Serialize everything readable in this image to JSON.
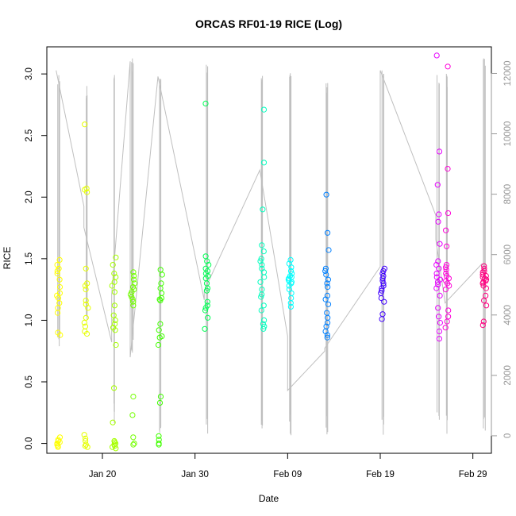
{
  "chart_data": {
    "type": "scatter",
    "title": "ORCAS RF01-19 RICE (Log)",
    "xlabel": "Date",
    "ylabel": "RICE",
    "grid": false,
    "legend": "none",
    "x_axis": {
      "type": "date",
      "range": [
        "2016-01-14",
        "2016-03-02"
      ],
      "ticks": [
        "2016-01-20",
        "2016-01-30",
        "2016-02-09",
        "2016-02-19",
        "2016-02-29"
      ],
      "tick_labels": [
        "Jan 20",
        "Jan 30",
        "Feb 09",
        "Feb 19",
        "Feb 29"
      ]
    },
    "y_axis": {
      "range": [
        -0.08,
        3.22
      ],
      "ticks": [
        0.0,
        0.5,
        1.0,
        1.5,
        2.0,
        2.5,
        3.0
      ],
      "tick_labels": [
        "0.0",
        "0.5",
        "1.0",
        "1.5",
        "2.0",
        "2.5",
        "3.0"
      ]
    },
    "y2_axis": {
      "color": "#999999",
      "range": [
        -580,
        12880
      ],
      "ticks": [
        0,
        2000,
        4000,
        6000,
        8000,
        10000,
        12000
      ],
      "tick_labels": [
        "0",
        "2000",
        "4000",
        "6000",
        "8000",
        "10000",
        "12000"
      ]
    },
    "altitude_line_color": "#bfbfbf",
    "flights": [
      {
        "date": "2016-01-15",
        "color": "#ffff00",
        "alt_min": 2700,
        "alt_max": 12100,
        "y": [
          1.49,
          1.45,
          1.42,
          1.4,
          1.38,
          1.33,
          1.27,
          1.22,
          1.2,
          1.18,
          1.14,
          1.1,
          1.06,
          0.9,
          0.88,
          0.05,
          0.03,
          0.02,
          0.01,
          0.0,
          -0.01,
          -0.02,
          -0.03
        ]
      },
      {
        "date": "2016-01-18",
        "color": "#e6ff00",
        "alt_min": 3600,
        "alt_max": 11700,
        "y": [
          2.59,
          2.07,
          2.06,
          2.04,
          1.42,
          1.3,
          1.28,
          1.25,
          1.16,
          1.13,
          1.1,
          1.02,
          0.98,
          0.95,
          0.91,
          0.89,
          0.07,
          0.04,
          0.02,
          -0.01,
          -0.02,
          -0.03
        ]
      },
      {
        "date": "2016-01-21",
        "color": "#a6ff00",
        "alt_min": 400,
        "alt_max": 12100,
        "y": [
          1.51,
          1.45,
          1.38,
          1.35,
          1.31,
          1.28,
          1.23,
          1.12,
          1.04,
          1.0,
          0.97,
          0.94,
          0.92,
          0.8,
          0.45,
          0.17,
          0.02,
          0.01,
          0.0,
          -0.01,
          -0.02,
          -0.03,
          -0.04
        ]
      },
      {
        "date": "2016-01-23",
        "color": "#73ff00",
        "alt_min": 2500,
        "alt_max": 12500,
        "y": [
          1.39,
          1.36,
          1.33,
          1.3,
          1.27,
          1.25,
          1.23,
          1.21,
          1.19,
          1.17,
          1.15,
          1.12,
          0.38,
          0.23,
          0.05,
          0.0,
          -0.01
        ]
      },
      {
        "date": "2016-01-26",
        "color": "#40ff00",
        "alt_min": 0,
        "alt_max": 12000,
        "y": [
          1.41,
          1.37,
          1.3,
          1.26,
          1.22,
          1.18,
          1.17,
          1.16,
          0.97,
          0.92,
          0.87,
          0.86,
          0.8,
          0.38,
          0.33,
          0.06,
          0.03,
          0.0,
          -0.01
        ]
      },
      {
        "date": "2016-01-31",
        "color": "#00ff55",
        "alt_min": 0,
        "alt_max": 12400,
        "y": [
          2.76,
          1.52,
          1.48,
          1.45,
          1.42,
          1.4,
          1.38,
          1.36,
          1.34,
          1.3,
          1.26,
          1.24,
          1.15,
          1.12,
          1.1,
          1.08,
          1.02,
          0.93
        ]
      },
      {
        "date": "2016-02-06",
        "color": "#00ffbf",
        "alt_min": 0,
        "alt_max": 12100,
        "y": [
          2.71,
          2.28,
          1.9,
          1.61,
          1.56,
          1.5,
          1.48,
          1.45,
          1.42,
          1.39,
          1.35,
          1.31,
          1.25,
          1.21,
          1.19,
          1.12,
          1.08,
          1.0,
          0.97,
          0.95,
          0.93
        ]
      },
      {
        "date": "2016-02-09",
        "color": "#00ffff",
        "alt_min": 0,
        "alt_max": 12300,
        "y": [
          1.49,
          1.46,
          1.43,
          1.4,
          1.38,
          1.36,
          1.35,
          1.34,
          1.33,
          1.32,
          1.31,
          1.3,
          1.28,
          1.25,
          1.22,
          1.18,
          1.14,
          1.11
        ]
      },
      {
        "date": "2016-02-13",
        "color": "#0080ff",
        "alt_min": 0,
        "alt_max": 11800,
        "y": [
          2.02,
          1.71,
          1.57,
          1.42,
          1.4,
          1.37,
          1.33,
          1.3,
          1.27,
          1.2,
          1.17,
          1.13,
          1.06,
          1.02,
          0.98,
          0.95,
          0.91,
          0.88,
          0.86
        ]
      },
      {
        "date": "2016-02-19",
        "color": "#4000ff",
        "alt_min": 0,
        "alt_max": 12200,
        "y": [
          1.42,
          1.4,
          1.38,
          1.36,
          1.34,
          1.32,
          1.3,
          1.28,
          1.26,
          1.24,
          1.22,
          1.18,
          1.15,
          1.05,
          1.01
        ]
      },
      {
        "date": "2016-02-25",
        "color": "#e600ff",
        "alt_min": 0,
        "alt_max": 12000,
        "y": [
          3.15,
          2.37,
          2.1,
          1.86,
          1.8,
          1.62,
          1.48,
          1.45,
          1.42,
          1.38,
          1.35,
          1.33,
          1.31,
          1.29,
          1.26,
          1.2,
          1.1,
          1.03,
          0.98,
          0.91,
          0.85
        ]
      },
      {
        "date": "2016-02-26",
        "color": "#ff00d9",
        "alt_min": 0,
        "alt_max": 12000,
        "y": [
          3.06,
          2.23,
          1.87,
          1.73,
          1.6,
          1.45,
          1.43,
          1.41,
          1.38,
          1.36,
          1.34,
          1.32,
          1.3,
          1.28,
          1.25,
          1.08,
          1.03,
          0.99,
          0.94
        ]
      },
      {
        "date": "2016-03-01",
        "color": "#ff0080",
        "alt_min": 0,
        "alt_max": 12600,
        "y": [
          1.44,
          1.42,
          1.4,
          1.39,
          1.37,
          1.36,
          1.35,
          1.34,
          1.33,
          1.32,
          1.31,
          1.3,
          1.28,
          1.26,
          1.2,
          1.16,
          1.12,
          0.99,
          0.96
        ]
      }
    ],
    "altitude_connector": {
      "color": "#bfbfbf",
      "points": [
        {
          "date": "2016-01-15",
          "alt": 12100
        },
        {
          "date": "2016-01-18",
          "alt": 7600
        },
        {
          "date": "2016-01-18",
          "alt": 6900
        },
        {
          "date": "2016-01-21",
          "alt": 3100
        },
        {
          "date": "2016-01-21",
          "alt": 4700
        },
        {
          "date": "2016-01-23",
          "alt": 12400
        },
        {
          "date": "2016-01-23",
          "alt": 2600
        },
        {
          "date": "2016-01-26",
          "alt": 11900
        },
        {
          "date": "2016-01-31",
          "alt": 4500
        },
        {
          "date": "2016-01-31",
          "alt": 4800
        },
        {
          "date": "2016-02-06",
          "alt": 8800
        },
        {
          "date": "2016-02-09",
          "alt": 3300
        },
        {
          "date": "2016-02-09",
          "alt": 1500
        },
        {
          "date": "2016-02-13",
          "alt": 2800
        },
        {
          "date": "2016-02-13",
          "alt": 2900
        },
        {
          "date": "2016-02-19",
          "alt": 5600
        },
        {
          "date": "2016-02-19",
          "alt": 12100
        },
        {
          "date": "2016-02-25",
          "alt": 7300
        },
        {
          "date": "2016-02-25",
          "alt": 6500
        },
        {
          "date": "2016-02-26",
          "alt": 4400
        },
        {
          "date": "2016-03-01",
          "alt": 5700
        }
      ]
    }
  }
}
